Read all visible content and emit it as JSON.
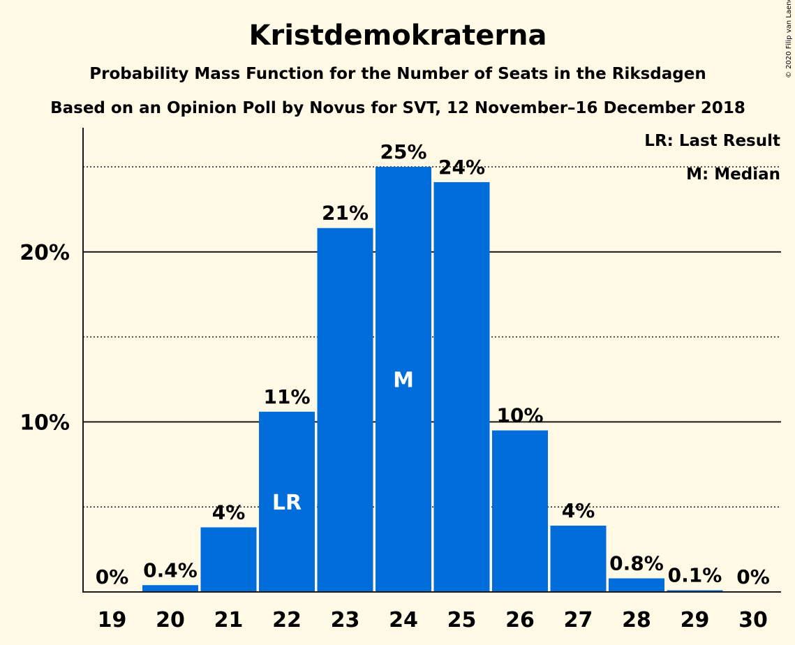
{
  "chart_data": {
    "type": "bar",
    "title": "Kristdemokraterna",
    "subtitle": "Probability Mass Function for the Number of Seats in the Riksdagen",
    "subtitle2": "Based on an Opinion Poll by Novus for SVT, 12 November–16 December 2018",
    "copyright": "© 2020 Filip van Laenen",
    "categories": [
      "19",
      "20",
      "21",
      "22",
      "23",
      "24",
      "25",
      "26",
      "27",
      "28",
      "29",
      "30"
    ],
    "values": [
      0,
      0.4,
      3.8,
      10.6,
      21.4,
      25.0,
      24.1,
      9.5,
      3.9,
      0.8,
      0.1,
      0
    ],
    "value_labels": [
      "0%",
      "0.4%",
      "4%",
      "11%",
      "21%",
      "25%",
      "24%",
      "10%",
      "4%",
      "0.8%",
      "0.1%",
      "0%"
    ],
    "inside_labels": [
      "",
      "",
      "",
      "LR",
      "",
      "M",
      "",
      "",
      "",
      "",
      "",
      ""
    ],
    "yticks": [
      {
        "value": 10,
        "label": "10%"
      },
      {
        "value": 20,
        "label": "20%"
      }
    ],
    "dotted_gridlines": [
      5,
      10,
      15,
      25
    ],
    "solid_gridlines": [
      10,
      20
    ],
    "ylim": [
      0,
      27.3
    ],
    "xlabel": "",
    "ylabel": "",
    "bar_color": "#006ddb",
    "legend_position": "top-right",
    "legend": [
      "LR: Last Result",
      "M: Median"
    ]
  }
}
